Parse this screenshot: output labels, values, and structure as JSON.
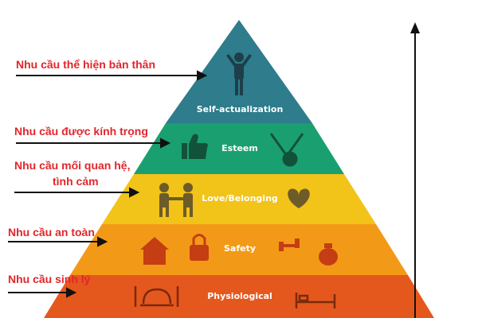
{
  "pyramid": {
    "levels": [
      {
        "id": "self",
        "name": "Self-actualization",
        "color": "#2e7c8c",
        "icon": "person-arms-up-icon"
      },
      {
        "id": "esteem",
        "name": "Esteem",
        "color": "#1aa070",
        "icon": "thumbs-up-icon, medal-icon"
      },
      {
        "id": "love",
        "name": "Love/Belonging",
        "color": "#f2c318",
        "icon": "two-people-handshake-icon, heart-icon"
      },
      {
        "id": "safety",
        "name": "Safety",
        "color": "#f29a17",
        "icon": "house-icon, padlock-icon, dumbbell-icon, money-bag-icon"
      },
      {
        "id": "phys",
        "name": "Physiological",
        "color": "#e5581d",
        "icon": "fork-knife-cloche-icon, bed-icon"
      }
    ]
  },
  "needs": {
    "self": "Nhu cầu thể hiện bản thân",
    "esteem": "Nhu cầu được kính trọng",
    "love_line1": "Nhu cầu mối quan hệ,",
    "love_line2": "tình cảm",
    "safety": "Nhu cầu an toàn",
    "phys": "Nhu cầu sinh lý"
  },
  "accent": {
    "label_color": "#e2262b",
    "arrow_color": "#111111"
  }
}
